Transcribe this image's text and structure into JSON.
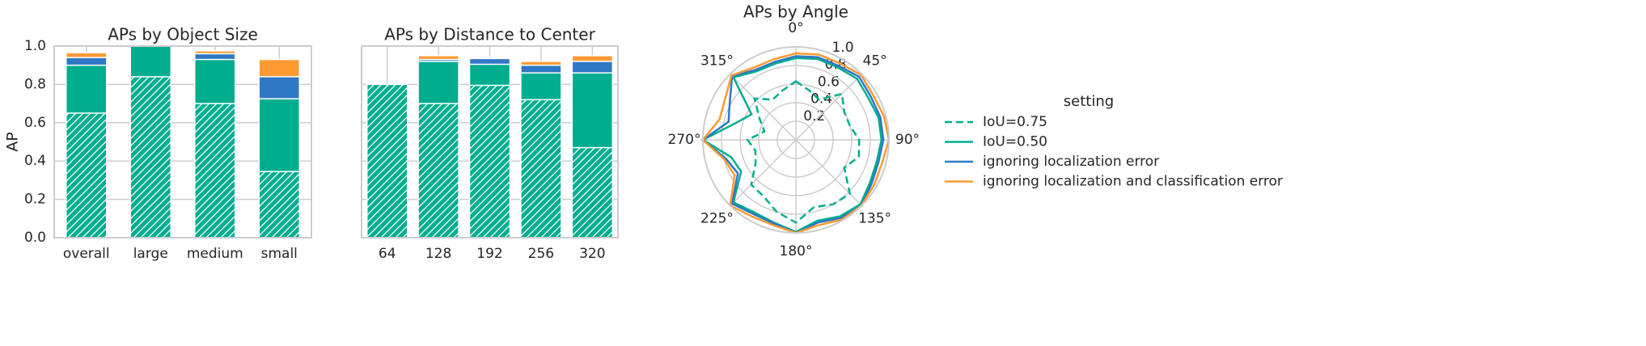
{
  "chart_data": [
    {
      "type": "bar",
      "title": "APs by Object Size",
      "ylabel": "AP",
      "categories": [
        "overall",
        "large",
        "medium",
        "small"
      ],
      "series": [
        {
          "color": "#00ae8f",
          "hatch": "///",
          "values": [
            0.65,
            0.84,
            0.7,
            0.345
          ]
        },
        {
          "color": "#00ae8f",
          "values": [
            0.9,
            1.0,
            0.93,
            0.725
          ]
        },
        {
          "color": "#2f78c5",
          "values": [
            0.94,
            1.0,
            0.96,
            0.84
          ]
        },
        {
          "color": "#ff9a30",
          "values": [
            0.965,
            1.0,
            0.975,
            0.93
          ]
        }
      ],
      "ylim": [
        0,
        1
      ],
      "yticks": [
        {
          "value": 0,
          "label": "0.0"
        },
        0.2,
        0.4,
        0.6,
        0.8,
        {
          "value": 1,
          "label": "1.0"
        }
      ],
      "grid": true
    },
    {
      "type": "bar",
      "title": "APs by Distance to Center",
      "categories": [
        "64",
        "128",
        "192",
        "256",
        "320"
      ],
      "series": [
        {
          "color": "#00ae8f",
          "hatch": "///",
          "values": [
            0.8,
            0.7,
            0.795,
            0.72,
            0.47
          ]
        },
        {
          "color": "#00ae8f",
          "values": [
            0.8,
            0.92,
            0.905,
            0.86,
            0.86
          ]
        },
        {
          "color": "#2f78c5",
          "values": [
            0.8,
            0.93,
            0.935,
            0.9,
            0.92
          ]
        },
        {
          "color": "#ff9a30",
          "values": [
            0.8,
            0.95,
            0.94,
            0.92,
            0.95
          ]
        }
      ],
      "ylim": [
        0,
        1
      ],
      "yticks": [
        0,
        0.2,
        0.4,
        0.6,
        0.8,
        1
      ],
      "grid": true
    },
    {
      "type": "polar",
      "title": "APs by Angle",
      "x": [
        0,
        15,
        30,
        45,
        60,
        75,
        90,
        105,
        120,
        135,
        150,
        165,
        180,
        195,
        210,
        225,
        240,
        255,
        270,
        285,
        300,
        315,
        330,
        345
      ],
      "xticks": [
        {
          "value": 0,
          "label": "0°"
        },
        {
          "value": 45,
          "label": "45°"
        },
        {
          "value": 90,
          "label": "90°"
        },
        {
          "value": 135,
          "label": "135°"
        },
        {
          "value": 180,
          "label": "180°"
        },
        {
          "value": 225,
          "label": "225°"
        },
        {
          "value": 270,
          "label": "270°"
        },
        {
          "value": 315,
          "label": "315°"
        }
      ],
      "ylim": [
        0,
        1
      ],
      "yticks": [
        0.2,
        0.4,
        0.6,
        0.8,
        {
          "value": 1,
          "label": "1.0"
        }
      ],
      "grid": true,
      "series": [
        {
          "name": "IoU=0.75",
          "color": "#00ae8f",
          "dashed": true,
          "values": [
            0.63,
            0.55,
            0.5,
            0.7,
            0.6,
            0.6,
            0.68,
            0.7,
            0.6,
            0.82,
            0.8,
            0.75,
            0.89,
            0.8,
            0.7,
            0.68,
            0.5,
            0.45,
            0.52,
            0.35,
            0.45,
            0.63,
            0.5,
            0.55
          ]
        },
        {
          "name": "IoU=0.50",
          "color": "#00ae8f",
          "values": [
            0.88,
            0.9,
            0.9,
            0.93,
            0.9,
            0.92,
            0.92,
            0.9,
            0.92,
            0.98,
            0.95,
            0.9,
            0.99,
            0.92,
            0.9,
            0.95,
            0.68,
            0.72,
            1.0,
            0.68,
            0.55,
            0.95,
            0.85,
            0.85
          ]
        },
        {
          "name": "ignoring localization error",
          "color": "#2f78c5",
          "values": [
            0.9,
            0.92,
            0.92,
            0.96,
            0.93,
            0.94,
            0.94,
            0.92,
            0.94,
            1.0,
            0.97,
            0.92,
            1.0,
            0.93,
            0.92,
            0.97,
            0.72,
            0.78,
            1.0,
            0.75,
            0.82,
            0.97,
            0.87,
            0.87
          ]
        },
        {
          "name": "ignoring localization and classification error",
          "color": "#ff9a30",
          "values": [
            0.93,
            0.95,
            0.95,
            0.99,
            0.96,
            0.98,
            1.0,
            0.96,
            0.97,
            1.0,
            0.99,
            0.95,
            1.0,
            0.95,
            0.95,
            1.0,
            0.76,
            0.8,
            1.0,
            0.85,
            0.88,
            0.98,
            0.9,
            0.9
          ]
        }
      ],
      "legend": {
        "title": "setting",
        "position": "right"
      }
    }
  ]
}
